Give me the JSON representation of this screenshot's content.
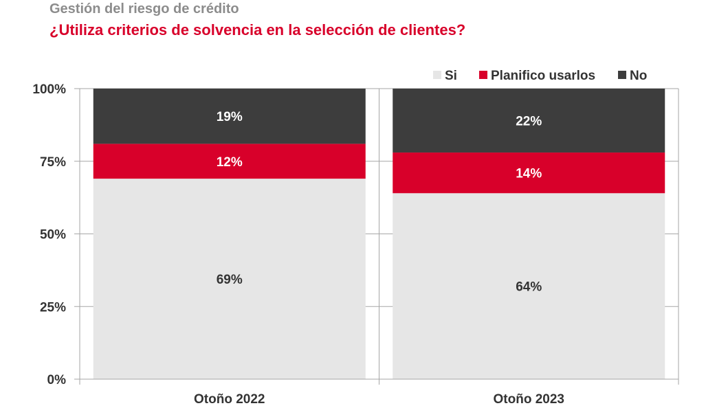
{
  "header": {
    "supertitle": "Gestión del riesgo de crédito",
    "title": "¿Utiliza criterios de solvencia en la selección de clientes?"
  },
  "chart_data": {
    "type": "bar",
    "stacked": true,
    "percent": true,
    "categories": [
      "Otoño 2022",
      "Otoño 2023"
    ],
    "series": [
      {
        "name": "Si",
        "values": [
          69,
          64
        ],
        "labels": [
          "69%",
          "64%"
        ],
        "color": "#e6e6e6",
        "label_color": "#333333"
      },
      {
        "name": "Planifico usarlos",
        "values": [
          12,
          14
        ],
        "labels": [
          "12%",
          "14%"
        ],
        "color": "#d8002a",
        "label_color": "#ffffff"
      },
      {
        "name": "No",
        "values": [
          19,
          22
        ],
        "labels": [
          "19%",
          "22%"
        ],
        "color": "#3d3d3d",
        "label_color": "#ffffff"
      }
    ],
    "yticks": [
      "0%",
      "25%",
      "50%",
      "75%",
      "100%"
    ],
    "ylim": [
      0,
      100
    ],
    "grid": true,
    "legend": "top-right"
  }
}
